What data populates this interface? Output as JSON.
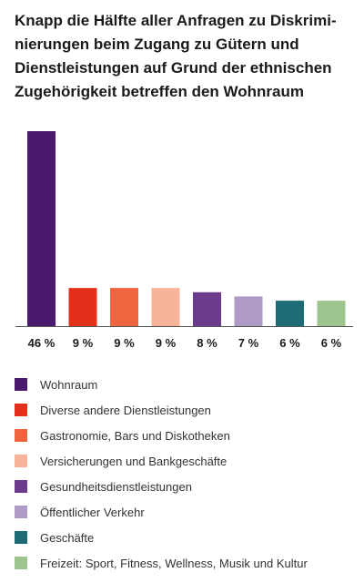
{
  "title_lines": [
    "Knapp die Hälfte aller Anfragen zu Diskrimi-",
    "nierungen beim Zugang zu Gütern und",
    "Dienstleistungen auf Grund der ethnischen",
    "Zugehörigkeit betreffen den Wohnraum"
  ],
  "chart_data": {
    "type": "bar",
    "title": "Knapp die Hälfte aller Anfragen zu Diskriminierungen beim Zugang zu Gütern und Dienstleistungen auf Grund der ethnischen Zugehörigkeit betreffen den Wohnraum",
    "categories": [
      "Wohnraum",
      "Diverse andere Dienstleistungen",
      "Gastronomie, Bars und Diskotheken",
      "Versicherungen und Bankgeschäfte",
      "Gesundheitsdienstleistungen",
      "Öffentlicher Verkehr",
      "Geschäfte",
      "Freizeit: Sport, Fitness, Wellness, Musik und Kultur"
    ],
    "values": [
      46,
      9,
      9,
      9,
      8,
      7,
      6,
      6
    ],
    "value_labels": [
      "46 %",
      "9 %",
      "9 %",
      "9 %",
      "8 %",
      "7 %",
      "6 %",
      "6 %"
    ],
    "colors": [
      "#4a1a6e",
      "#e2301b",
      "#ee6540",
      "#f7b49a",
      "#6b3b8c",
      "#b09ac8",
      "#1c6b75",
      "#9cc58f"
    ],
    "ylim": [
      0,
      46
    ],
    "grid": false,
    "legend_position": "bottom"
  }
}
